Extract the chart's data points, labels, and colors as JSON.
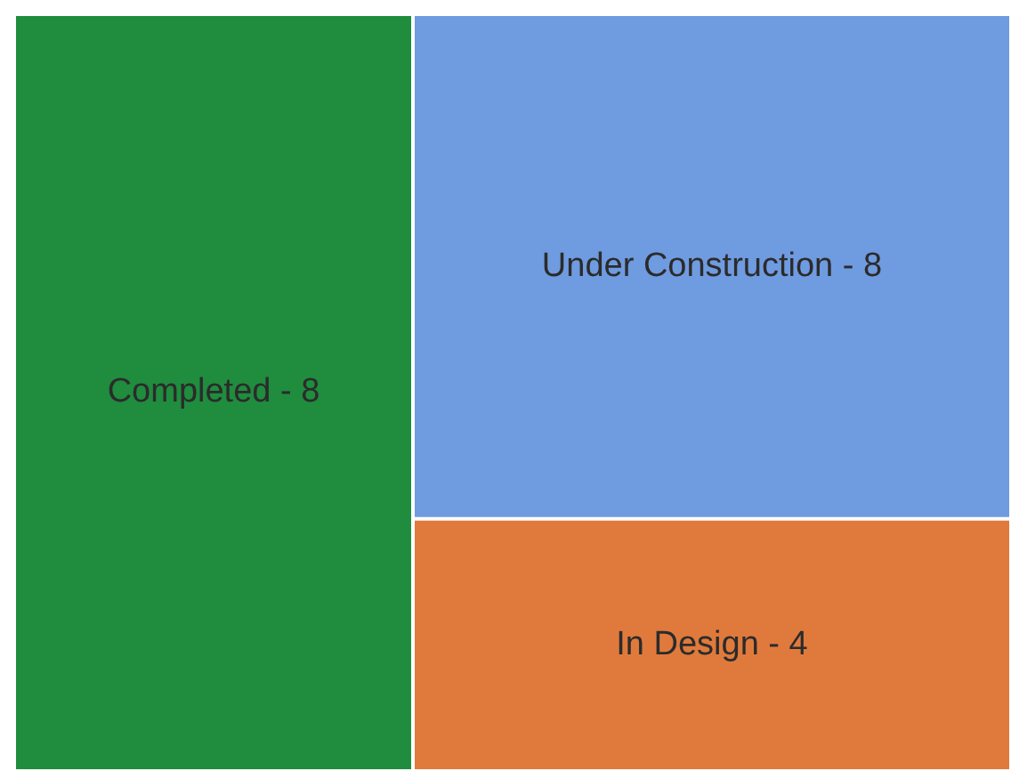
{
  "chart_data": {
    "type": "other",
    "categories": [
      "Completed -",
      "Under Construction -",
      "In Design -"
    ],
    "data_labels": true,
    "values": [
      8,
      8,
      4
    ],
    "colors": [
      "#1f8c3e",
      "#6f9be0",
      "#e07a3c"
    ]
  }
}
